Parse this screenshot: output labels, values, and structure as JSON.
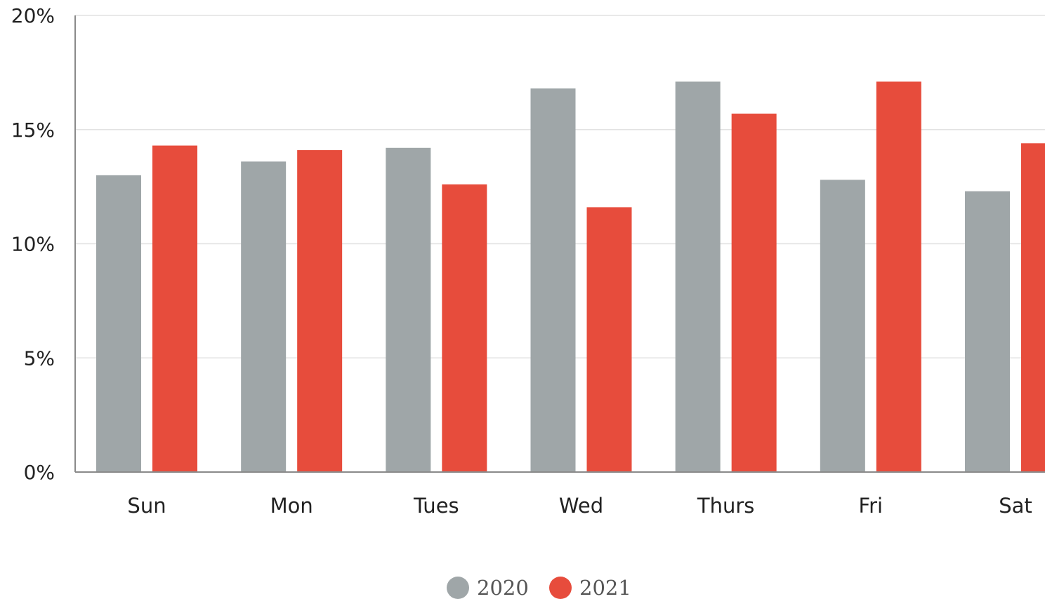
{
  "chart_data": {
    "type": "bar",
    "categories": [
      "Sun",
      "Mon",
      "Tues",
      "Wed",
      "Thurs",
      "Fri",
      "Sat"
    ],
    "series": [
      {
        "name": "2020",
        "color": "#9fa6a8",
        "values": [
          13.0,
          13.6,
          14.2,
          16.8,
          17.1,
          12.8,
          12.3
        ]
      },
      {
        "name": "2021",
        "color": "#e74c3c",
        "values": [
          14.3,
          14.1,
          12.6,
          11.6,
          15.7,
          17.1,
          14.4
        ]
      }
    ],
    "ylim": [
      0,
      20
    ],
    "yticks": [
      0,
      5,
      10,
      15,
      20
    ],
    "ytick_labels": [
      "0%",
      "5%",
      "10%",
      "15%",
      "20%"
    ],
    "xlabel": "",
    "ylabel": "",
    "title": "",
    "grid": "horizontal",
    "legend": "bottom-center"
  }
}
